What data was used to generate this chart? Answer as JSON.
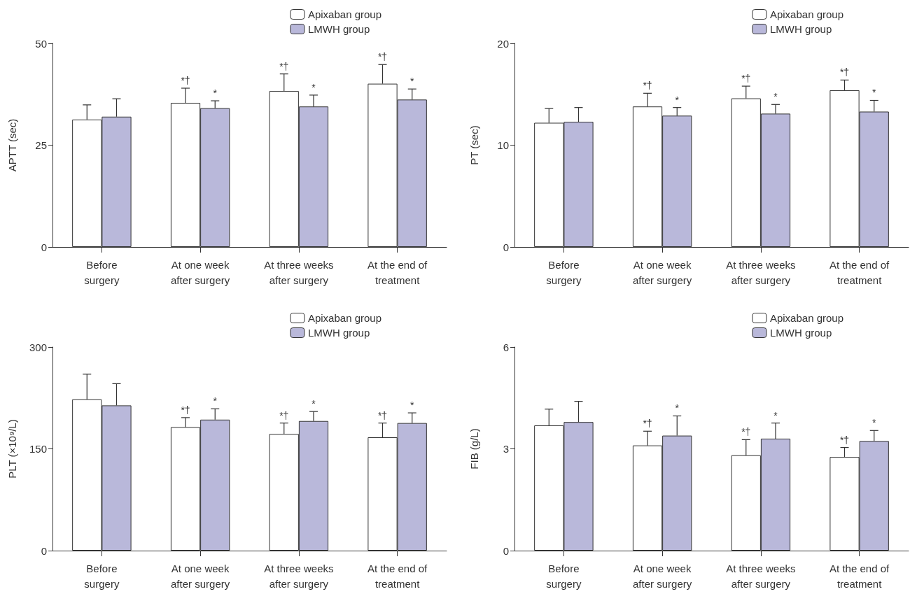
{
  "chart_data": [
    {
      "type": "bar",
      "ylabel": "APTT (sec)",
      "categories": [
        "Before\nsurgery",
        "At one week\nafter surgery",
        "At three weeks\nafter surgery",
        "At the end of\ntreatment"
      ],
      "ylim": [
        0,
        50
      ],
      "yticks": [
        0,
        25,
        50
      ],
      "legend": "top right",
      "grid": false,
      "series": [
        {
          "name": "Apixaban group",
          "color": "#ffffff",
          "values": [
            31.3,
            35.4,
            38.3,
            40.1
          ],
          "errors": [
            [
              31.3,
              34.9
            ],
            [
              35.4,
              39.0
            ],
            [
              38.3,
              42.5
            ],
            [
              40.1,
              44.8
            ]
          ],
          "value_labels": [
            null,
            "*†",
            "*†",
            "*†"
          ]
        },
        {
          "name": "LMWH group",
          "color": "#b9b8da",
          "values": [
            32.0,
            34.1,
            34.5,
            36.2
          ],
          "errors": [
            [
              32.0,
              36.4
            ],
            [
              34.1,
              35.9
            ],
            [
              34.5,
              37.3
            ],
            [
              36.2,
              38.8
            ]
          ],
          "value_labels": [
            null,
            "*",
            "*",
            "*"
          ]
        }
      ]
    },
    {
      "type": "bar",
      "ylabel": "PT (sec)",
      "categories": [
        "Before\nsurgery",
        "At one week\nafter surgery",
        "At three weeks\nafter surgery",
        "At the end of\ntreatment"
      ],
      "ylim": [
        0,
        20
      ],
      "yticks": [
        0,
        10,
        20
      ],
      "legend": "top right",
      "grid": false,
      "series": [
        {
          "name": "Apixaban group",
          "color": "#ffffff",
          "values": [
            12.2,
            13.8,
            14.6,
            15.4
          ],
          "errors": [
            [
              12.2,
              13.6
            ],
            [
              13.8,
              15.1
            ],
            [
              14.6,
              15.8
            ],
            [
              15.4,
              16.4
            ]
          ],
          "value_labels": [
            null,
            "*†",
            "*†",
            "*†"
          ]
        },
        {
          "name": "LMWH group",
          "color": "#b9b8da",
          "values": [
            12.3,
            12.9,
            13.1,
            13.3
          ],
          "errors": [
            [
              12.3,
              13.7
            ],
            [
              12.9,
              13.7
            ],
            [
              13.1,
              14.0
            ],
            [
              13.3,
              14.4
            ]
          ],
          "value_labels": [
            null,
            "*",
            "*",
            "*"
          ]
        }
      ]
    },
    {
      "type": "bar",
      "ylabel": "PLT (×10⁹/L)",
      "categories": [
        "Before\nsurgery",
        "At one week\nafter surgery",
        "At three weeks\nafter surgery",
        "At the end of\ntreatment"
      ],
      "ylim": [
        0,
        300
      ],
      "yticks": [
        0,
        150,
        300
      ],
      "legend": "top right",
      "grid": false,
      "series": [
        {
          "name": "Apixaban group",
          "color": "#ffffff",
          "values": [
            223,
            182,
            172,
            167
          ],
          "errors": [
            [
              223,
              260
            ],
            [
              182,
              196
            ],
            [
              172,
              188
            ],
            [
              167,
              188
            ]
          ],
          "value_labels": [
            null,
            "*†",
            "*†",
            "*†"
          ]
        },
        {
          "name": "LMWH group",
          "color": "#b9b8da",
          "values": [
            214,
            193,
            191,
            188
          ],
          "errors": [
            [
              214,
              246
            ],
            [
              193,
              209
            ],
            [
              191,
              205
            ],
            [
              188,
              203
            ]
          ],
          "value_labels": [
            null,
            "*",
            "*",
            "*"
          ]
        }
      ]
    },
    {
      "type": "bar",
      "ylabel": "FIB (g/L)",
      "categories": [
        "Before\nsurgery",
        "At one week\nafter surgery",
        "At three weeks\nafter surgery",
        "At the end of\ntreatment"
      ],
      "ylim": [
        0,
        6
      ],
      "yticks": [
        0,
        3,
        6
      ],
      "legend": "top right",
      "grid": false,
      "series": [
        {
          "name": "Apixaban group",
          "color": "#ffffff",
          "values": [
            3.69,
            3.1,
            2.81,
            2.76
          ],
          "errors": [
            [
              3.69,
              4.17
            ],
            [
              3.1,
              3.52
            ],
            [
              2.81,
              3.27
            ],
            [
              2.76,
              3.04
            ]
          ],
          "value_labels": [
            null,
            "*†",
            "*†",
            "*†"
          ]
        },
        {
          "name": "LMWH group",
          "color": "#b9b8da",
          "values": [
            3.79,
            3.39,
            3.3,
            3.23
          ],
          "errors": [
            [
              3.79,
              4.4
            ],
            [
              3.39,
              3.97
            ],
            [
              3.3,
              3.76
            ],
            [
              3.23,
              3.54
            ]
          ],
          "value_labels": [
            null,
            "*",
            "*",
            "*"
          ]
        }
      ]
    }
  ]
}
